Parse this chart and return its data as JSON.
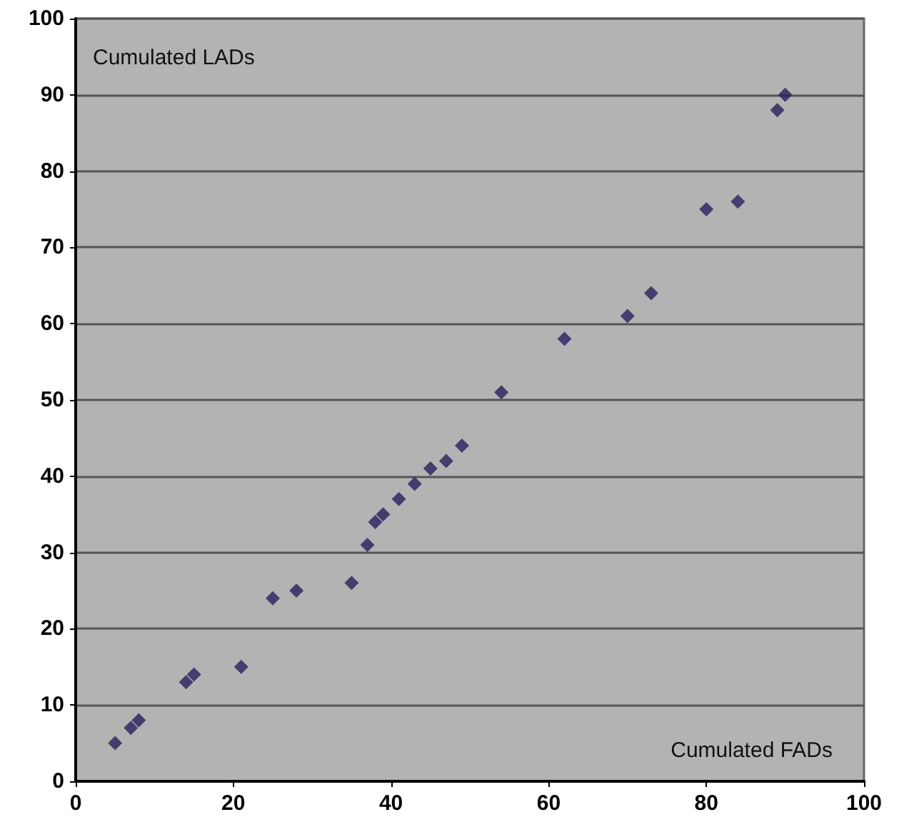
{
  "chart_data": {
    "type": "scatter",
    "xlabel": "Cumulated FADs",
    "ylabel": "Cumulated LADs",
    "x": [
      5,
      7,
      8,
      14,
      15,
      21,
      25,
      28,
      35,
      37,
      38,
      39,
      41,
      43,
      45,
      47,
      49,
      54,
      62,
      70,
      73,
      80,
      84,
      89,
      90
    ],
    "series": [
      {
        "color": "#2a1f5c",
        "values": [
          5,
          7,
          8,
          13,
          14,
          15,
          24,
          25,
          26,
          31,
          34,
          35,
          37,
          39,
          41,
          42,
          44,
          51,
          58,
          61,
          64,
          75,
          76,
          88,
          90
        ]
      }
    ],
    "xlim": [
      0,
      100
    ],
    "xticks": [
      0,
      20,
      40,
      60,
      80,
      100
    ],
    "ylim": [
      0,
      100
    ],
    "yticks": [
      0,
      10,
      20,
      30,
      40,
      50,
      60,
      70,
      80,
      90,
      100
    ],
    "grid": "y",
    "marker": "diamond"
  }
}
